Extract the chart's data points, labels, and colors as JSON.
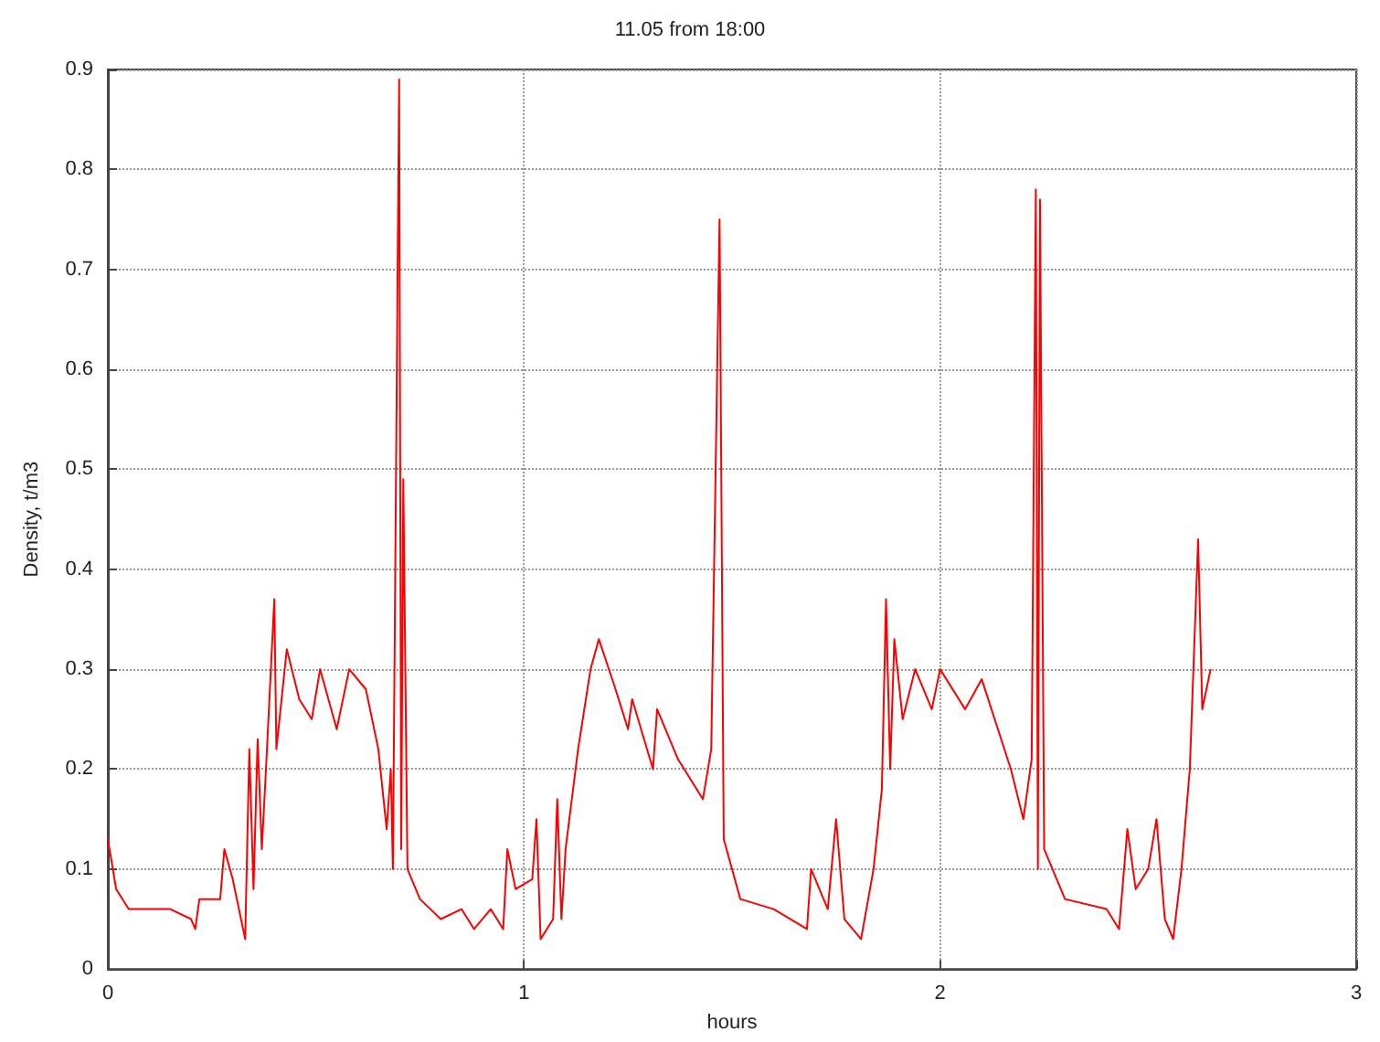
{
  "chart_data": {
    "type": "line",
    "title": "11.05 from 18:00",
    "xlabel": "hours",
    "ylabel": "Density, t/m3",
    "x": [
      0,
      0.02,
      0.05,
      0.1,
      0.15,
      0.2,
      0.21,
      0.22,
      0.27,
      0.28,
      0.3,
      0.33,
      0.34,
      0.35,
      0.36,
      0.37,
      0.38,
      0.4,
      0.405,
      0.43,
      0.46,
      0.49,
      0.51,
      0.55,
      0.58,
      0.62,
      0.65,
      0.67,
      0.68,
      0.685,
      0.7,
      0.705,
      0.71,
      0.72,
      0.75,
      0.8,
      0.85,
      0.88,
      0.92,
      0.95,
      0.96,
      0.98,
      1.02,
      1.03,
      1.04,
      1.07,
      1.08,
      1.09,
      1.1,
      1.13,
      1.16,
      1.18,
      1.22,
      1.25,
      1.26,
      1.31,
      1.32,
      1.37,
      1.43,
      1.45,
      1.47,
      1.48,
      1.52,
      1.6,
      1.68,
      1.69,
      1.73,
      1.75,
      1.77,
      1.81,
      1.84,
      1.86,
      1.87,
      1.88,
      1.89,
      1.91,
      1.94,
      1.98,
      2.0,
      2.06,
      2.1,
      2.17,
      2.2,
      2.22,
      2.23,
      2.235,
      2.24,
      2.25,
      2.3,
      2.4,
      2.43,
      2.45,
      2.47,
      2.5,
      2.52,
      2.54,
      2.56,
      2.58,
      2.6,
      2.62,
      2.63,
      2.65
    ],
    "series": [
      {
        "color": "#ff0000",
        "values": [
          0.13,
          0.08,
          0.06,
          0.06,
          0.06,
          0.05,
          0.04,
          0.07,
          0.07,
          0.12,
          0.09,
          0.03,
          0.22,
          0.08,
          0.23,
          0.12,
          0.2,
          0.37,
          0.22,
          0.32,
          0.27,
          0.25,
          0.3,
          0.24,
          0.3,
          0.28,
          0.22,
          0.14,
          0.2,
          0.1,
          0.89,
          0.12,
          0.49,
          0.1,
          0.07,
          0.05,
          0.06,
          0.04,
          0.06,
          0.04,
          0.12,
          0.08,
          0.09,
          0.15,
          0.03,
          0.05,
          0.17,
          0.05,
          0.12,
          0.22,
          0.3,
          0.33,
          0.28,
          0.24,
          0.27,
          0.2,
          0.26,
          0.21,
          0.17,
          0.22,
          0.75,
          0.13,
          0.07,
          0.06,
          0.04,
          0.1,
          0.06,
          0.15,
          0.05,
          0.03,
          0.1,
          0.18,
          0.37,
          0.2,
          0.33,
          0.25,
          0.3,
          0.26,
          0.3,
          0.26,
          0.29,
          0.2,
          0.15,
          0.21,
          0.78,
          0.1,
          0.77,
          0.12,
          0.07,
          0.06,
          0.04,
          0.14,
          0.08,
          0.1,
          0.15,
          0.05,
          0.03,
          0.1,
          0.2,
          0.43,
          0.26,
          0.3
        ]
      }
    ],
    "xlim": [
      0,
      3
    ],
    "xticks": [
      0,
      1,
      2,
      3
    ],
    "ylim": [
      0,
      0.9
    ],
    "yticks": [
      0,
      0.1,
      0.2,
      0.3,
      0.4,
      0.5,
      0.6,
      0.7,
      0.8,
      0.9
    ],
    "grid": true,
    "marker": "none",
    "line_style": "solid"
  }
}
